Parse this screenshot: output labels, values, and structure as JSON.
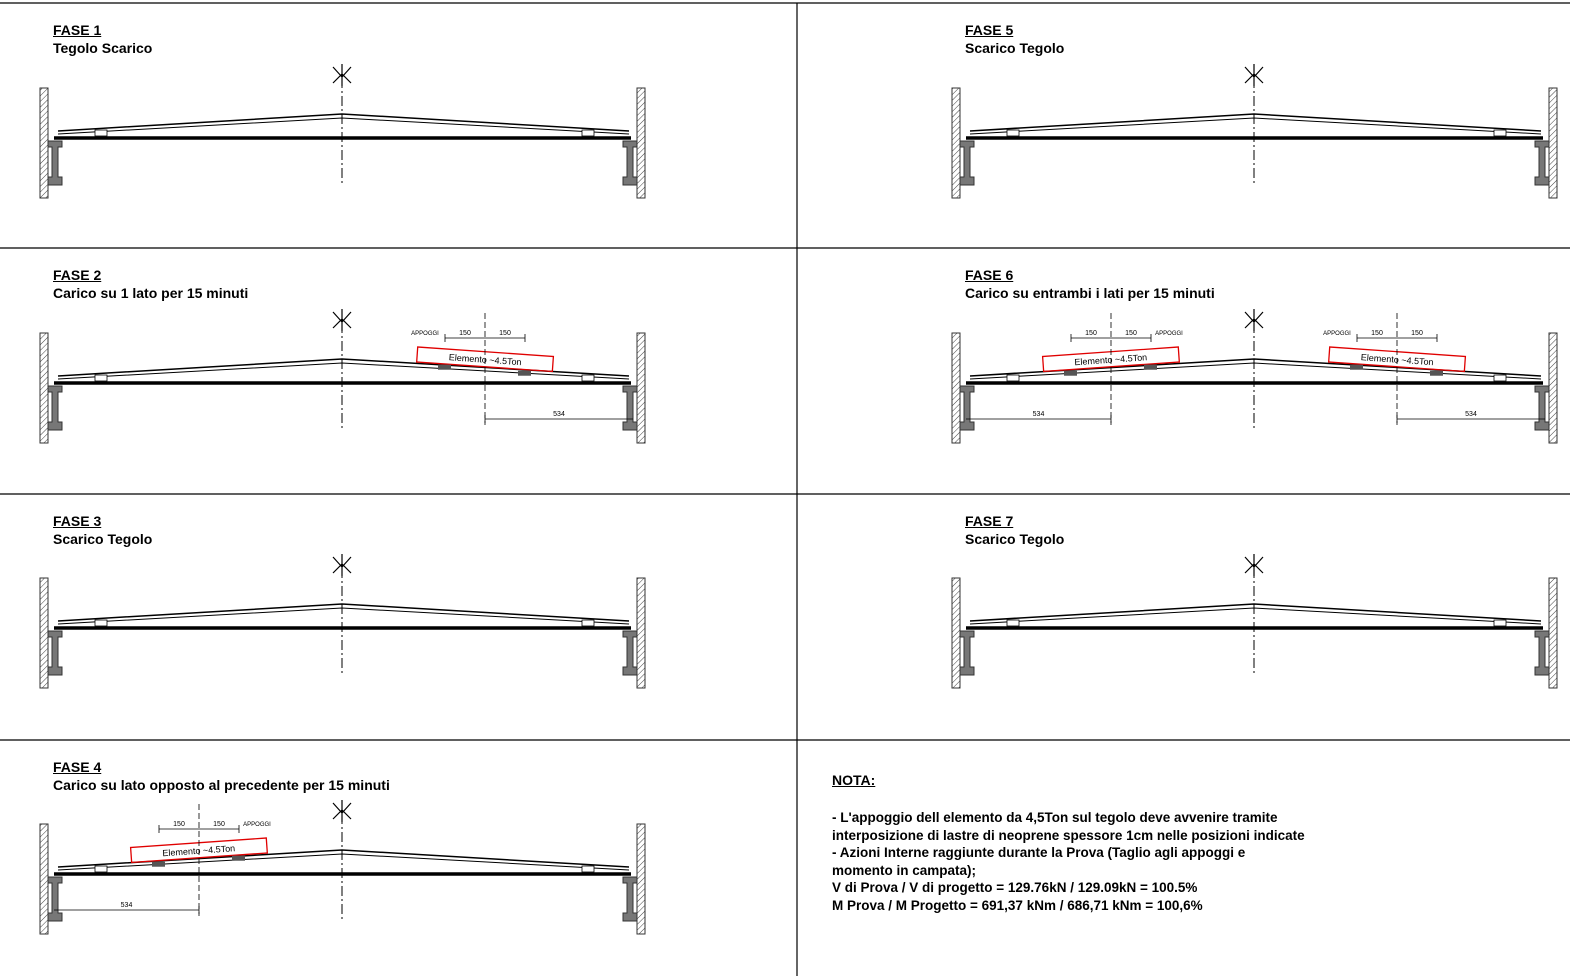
{
  "phases": [
    {
      "title": "FASE 1",
      "subtitle": "Tegolo Scarico"
    },
    {
      "title": "FASE 2",
      "subtitle": "Carico su 1 lato per 15 minuti"
    },
    {
      "title": "FASE 3",
      "subtitle": "Scarico Tegolo"
    },
    {
      "title": "FASE 4",
      "subtitle": "Carico su lato opposto al precedente per 15 minuti"
    },
    {
      "title": "FASE 5",
      "subtitle": "Scarico Tegolo"
    },
    {
      "title": "FASE 6",
      "subtitle": "Carico su entrambi i lati per 15 minuti"
    },
    {
      "title": "FASE 7",
      "subtitle": "Scarico Tegolo"
    }
  ],
  "load": {
    "element_label": "Elemento ~4.5Ton",
    "appoggi_label": "APPOGGI",
    "spacing": "150",
    "distance": "534"
  },
  "note": {
    "title": "NOTA:",
    "lines": [
      "- L'appoggio dell elemento da 4,5Ton sul tegolo deve avvenire tramite",
      "interposizione di lastre di neoprene spessore 1cm nelle posizioni indicate",
      "- Azioni Interne raggiunte durante la Prova (Taglio agli appoggi e",
      "momento in campata);",
      "V di Prova / V di progetto = 129.76kN  / 129.09kN = 100.5%",
      "M Prova / M Progetto = 691,37 kNm / 686,71 kNm = 100,6%"
    ]
  }
}
